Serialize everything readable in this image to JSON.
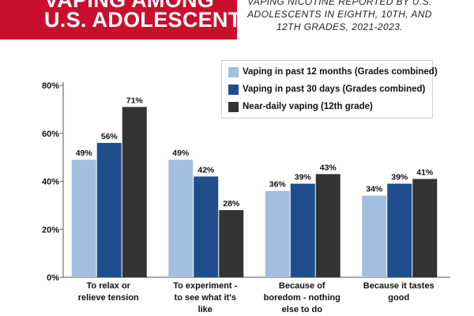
{
  "header": {
    "banner_lines": [
      "VAPING AMONG",
      "U.S. ADOLESCENTS"
    ],
    "banner_color": "#c8102e",
    "subtitle_lines": [
      "VAPING NICOTINE REPORTED BY U.S.",
      "ADOLESCENTS IN EIGHTH, 10TH, AND",
      "12TH GRADES, 2021-2023."
    ]
  },
  "chart_data": {
    "type": "bar",
    "categories": [
      [
        "To relax or",
        "relieve tension"
      ],
      [
        "To experiment -",
        "to see what it's",
        "like"
      ],
      [
        "Because of",
        "boredom - nothing",
        "else to do"
      ],
      [
        "Because it tastes",
        "good"
      ]
    ],
    "series": [
      {
        "name": "Vaping in past 12 months (Grades combined)",
        "color": "#a3bfdf",
        "values": [
          49,
          49,
          36,
          34
        ]
      },
      {
        "name": "Vaping in past 30 days (Grades combined)",
        "color": "#1e4e8c",
        "values": [
          56,
          42,
          39,
          39
        ]
      },
      {
        "name": "Near-daily vaping (12th grade)",
        "color": "#333333",
        "values": [
          71,
          28,
          43,
          41
        ]
      }
    ],
    "value_suffix": "%",
    "yticks": [
      "0%",
      "20%",
      "40%",
      "60%",
      "80%"
    ],
    "ylim": [
      0,
      80
    ],
    "grid": false,
    "legend_position": "top-right"
  }
}
